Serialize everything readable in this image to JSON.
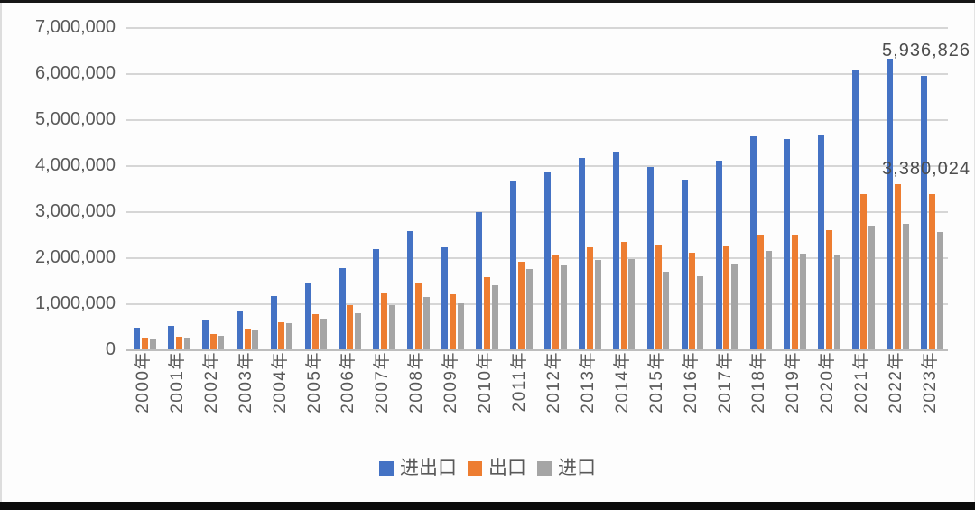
{
  "chart_data": {
    "type": "bar",
    "title": "",
    "categories": [
      "2000年",
      "2001年",
      "2002年",
      "2003年",
      "2004年",
      "2005年",
      "2006年",
      "2007年",
      "2008年",
      "2009年",
      "2010年",
      "2011年",
      "2012年",
      "2013年",
      "2014年",
      "2015年",
      "2016年",
      "2017年",
      "2018年",
      "2019年",
      "2020年",
      "2021年",
      "2022年",
      "2023年"
    ],
    "series": [
      {
        "key": "total",
        "name": "进出口",
        "color": "#4472C4",
        "values": [
          474297,
          509651,
          620766,
          850988,
          1154554,
          1421906,
          1760439,
          2176572,
          2563260,
          2207535,
          2974001,
          3641865,
          3867119,
          4158993,
          4301528,
          3953032,
          3685558,
          4107139,
          4622443,
          4576554,
          4645564,
          6051488,
          6309600,
          5936826
        ]
      },
      {
        "key": "exports",
        "name": "出口",
        "color": "#ED7D31",
        "values": [
          249203,
          266098,
          325596,
          438228,
          593326,
          761953,
          968978,
          1220456,
          1430693,
          1201612,
          1577754,
          1898381,
          2048714,
          2209004,
          2342293,
          2273468,
          2097637,
          2263346,
          2486695,
          2499457,
          2589952,
          3363959,
          3593601,
          3380024
        ]
      },
      {
        "key": "imports",
        "name": "进口",
        "color": "#A5A5A5",
        "values": [
          225094,
          243553,
          295170,
          412760,
          561229,
          659953,
          791461,
          956116,
          1132567,
          1005923,
          1396247,
          1743484,
          1818405,
          1949989,
          1959235,
          1679564,
          1587921,
          1843793,
          2135748,
          2077097,
          2055612,
          2687529,
          2715999,
          2556802
        ]
      }
    ],
    "ylim": [
      0,
      7000000
    ],
    "y_tick_interval": 1000000,
    "y_tick_labels": [
      "0",
      "1,000,000",
      "2,000,000",
      "3,000,000",
      "4,000,000",
      "5,000,000",
      "6,000,000",
      "7,000,000"
    ],
    "grid": true,
    "legend_position": "bottom-center",
    "data_labels": [
      {
        "series": "进出口",
        "category": "2023年",
        "text": "5,936,826"
      },
      {
        "series": "出口",
        "category": "2023年",
        "text": "3,380,024"
      }
    ],
    "axis_label_color": "#595959",
    "gridline_color": "#d6d6d6"
  }
}
